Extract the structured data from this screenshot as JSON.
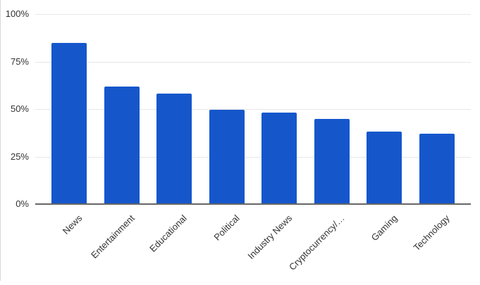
{
  "chart_data": {
    "type": "bar",
    "categories": [
      "News",
      "Entertainment",
      "Educational",
      "Political",
      "Industry News",
      "Cryptocurrency/…",
      "Gaming",
      "Technology"
    ],
    "values": [
      85,
      62,
      58,
      49.5,
      48,
      45,
      38,
      37
    ],
    "unit": "%",
    "xlabel": "",
    "ylabel": "",
    "ylim": [
      0,
      100
    ],
    "y_ticks": [
      {
        "value": 0,
        "label": "0%"
      },
      {
        "value": 25,
        "label": "25%"
      },
      {
        "value": 50,
        "label": "50%"
      },
      {
        "value": 75,
        "label": "75%"
      },
      {
        "value": 100,
        "label": "100%"
      }
    ],
    "grid": true,
    "legend": "none"
  },
  "colors": {
    "bar": "#1557cb",
    "gridline": "#e6e6e6",
    "axis_line": "#666666",
    "text": "#333333"
  }
}
